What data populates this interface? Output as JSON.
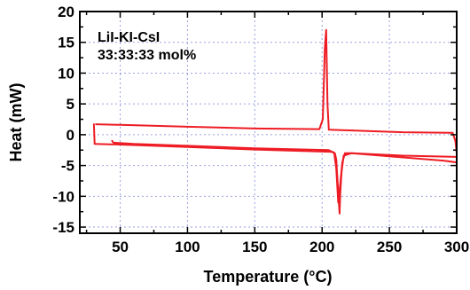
{
  "chart_data": {
    "type": "line",
    "xlabel": "Temperature (°C)",
    "ylabel": "Heat (mW)",
    "xlim": [
      20,
      300
    ],
    "ylim": [
      -16,
      20
    ],
    "x_ticks": [
      50,
      100,
      150,
      200,
      250,
      300
    ],
    "y_ticks": [
      -15,
      -10,
      -5,
      0,
      5,
      10,
      15,
      20
    ],
    "grid": true,
    "annotation": [
      "LiI-KI-CsI",
      "33:33:33 mol%"
    ],
    "series_color": "#ee1c24",
    "series": [
      {
        "x": [
          32,
          50,
          100,
          150,
          198,
          200.5,
          202,
          203,
          204,
          205,
          220,
          260,
          297,
          299,
          300,
          300
        ],
        "y": [
          1.7,
          1.6,
          1.3,
          1.0,
          0.9,
          2.5,
          14.0,
          17.0,
          5.0,
          0.8,
          0.7,
          0.4,
          0.3,
          -1.0,
          -3.0,
          -4.5
        ]
      },
      {
        "x": [
          300,
          290,
          250,
          222,
          216,
          214.5,
          213.5,
          213,
          212.2,
          211.2,
          210.5,
          209.5,
          208,
          150,
          100,
          50,
          31,
          30.5
        ],
        "y": [
          -4.5,
          -4.2,
          -3.5,
          -3.0,
          -3.4,
          -6.0,
          -9.5,
          -12.8,
          -10.0,
          -6.5,
          -4.0,
          -3.0,
          -2.8,
          -2.4,
          -2.0,
          -1.6,
          -1.5,
          1.7
        ]
      },
      {
        "x": [
          44,
          45,
          60,
          100,
          150,
          205,
          209,
          210.5,
          212,
          213.5,
          215,
          217,
          222,
          260,
          299
        ],
        "y": [
          -1.0,
          -1.3,
          -1.5,
          -1.8,
          -2.2,
          -2.5,
          -3.0,
          -5.5,
          -11.0,
          -8.0,
          -4.5,
          -3.0,
          -3.0,
          -3.4,
          -3.6
        ]
      }
    ]
  }
}
